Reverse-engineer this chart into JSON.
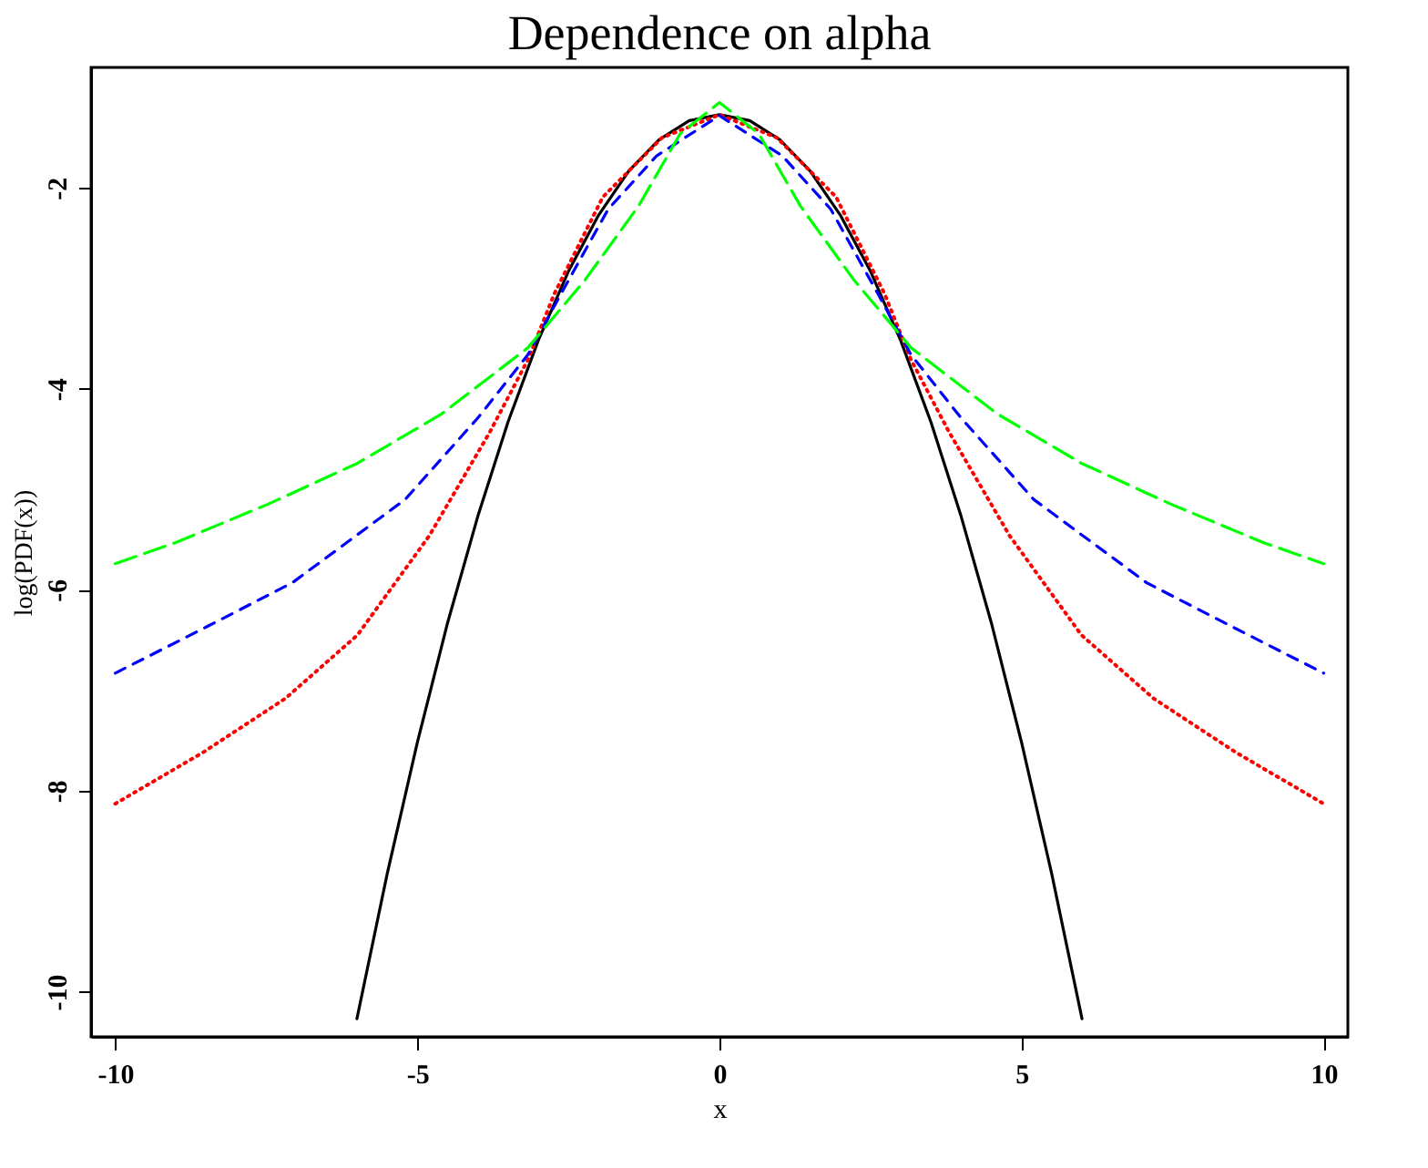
{
  "chart_data": {
    "type": "line",
    "title": "Dependence on alpha",
    "xlabel": "x",
    "ylabel": "log(PDF(x))",
    "xlim": [
      -10.4,
      10.4
    ],
    "ylim": [
      -10.45,
      -0.8
    ],
    "xticks": [
      -10,
      -5,
      0,
      5,
      10
    ],
    "yticks": [
      -10,
      -8,
      -6,
      -4,
      -2
    ],
    "grid": false,
    "marker": "none",
    "series": [
      {
        "color": "#000000",
        "line_style": "solid",
        "x": [
          -6,
          -5.5,
          -5,
          -4.5,
          -4,
          -3.5,
          -3,
          -2.5,
          -2,
          -1.5,
          -1,
          -0.5,
          0,
          0.5,
          1,
          1.5,
          2,
          2.5,
          3,
          3.5,
          4,
          4.5,
          5,
          5.5,
          6
        ],
        "values": [
          -10.27,
          -8.83,
          -7.52,
          -6.33,
          -5.27,
          -4.33,
          -3.52,
          -2.83,
          -2.27,
          -1.83,
          -1.52,
          -1.33,
          -1.27,
          -1.33,
          -1.52,
          -1.83,
          -2.27,
          -2.83,
          -3.52,
          -4.33,
          -5.27,
          -6.33,
          -7.52,
          -8.83,
          -10.27
        ]
      },
      {
        "color": "#ff0000",
        "line_style": "dotted",
        "x": [
          -10,
          -8.55,
          -7.18,
          -5.99,
          -4.8,
          -3.8,
          -3.17,
          -2.73,
          -1.93,
          -0.95,
          0,
          0.95,
          1.93,
          2.73,
          3.17,
          3.8,
          4.8,
          5.99,
          7.18,
          8.55,
          10
        ],
        "values": [
          -8.13,
          -7.62,
          -7.08,
          -6.45,
          -5.46,
          -4.43,
          -3.71,
          -3.05,
          -2.09,
          -1.5,
          -1.27,
          -1.5,
          -2.09,
          -3.05,
          -3.71,
          -4.43,
          -5.46,
          -6.45,
          -7.08,
          -7.62,
          -8.13
        ]
      },
      {
        "color": "#0000ff",
        "line_style": "dashed",
        "x": [
          -10,
          -8.46,
          -7.07,
          -5.2,
          -4.0,
          -3.17,
          -2.62,
          -1.84,
          -1.04,
          0,
          1.04,
          1.84,
          2.62,
          3.17,
          4.0,
          5.2,
          7.07,
          8.46,
          10
        ],
        "values": [
          -6.83,
          -6.36,
          -5.93,
          -5.1,
          -4.29,
          -3.66,
          -3.05,
          -2.21,
          -1.68,
          -1.28,
          -1.68,
          -2.21,
          -3.05,
          -3.66,
          -4.29,
          -5.1,
          -5.93,
          -6.36,
          -6.83
        ]
      },
      {
        "color": "#00ff00",
        "line_style": "dashed",
        "x": [
          -10,
          -9.0,
          -7.48,
          -5.99,
          -4.6,
          -3.17,
          -2.23,
          -1.34,
          -0.65,
          0,
          0.65,
          1.34,
          2.23,
          3.17,
          4.6,
          5.99,
          7.48,
          9.0,
          10
        ],
        "values": [
          -5.74,
          -5.53,
          -5.15,
          -4.74,
          -4.25,
          -3.59,
          -2.92,
          -2.18,
          -1.46,
          -1.15,
          -1.46,
          -2.18,
          -2.92,
          -3.59,
          -4.25,
          -4.74,
          -5.15,
          -5.53,
          -5.74
        ]
      }
    ]
  }
}
